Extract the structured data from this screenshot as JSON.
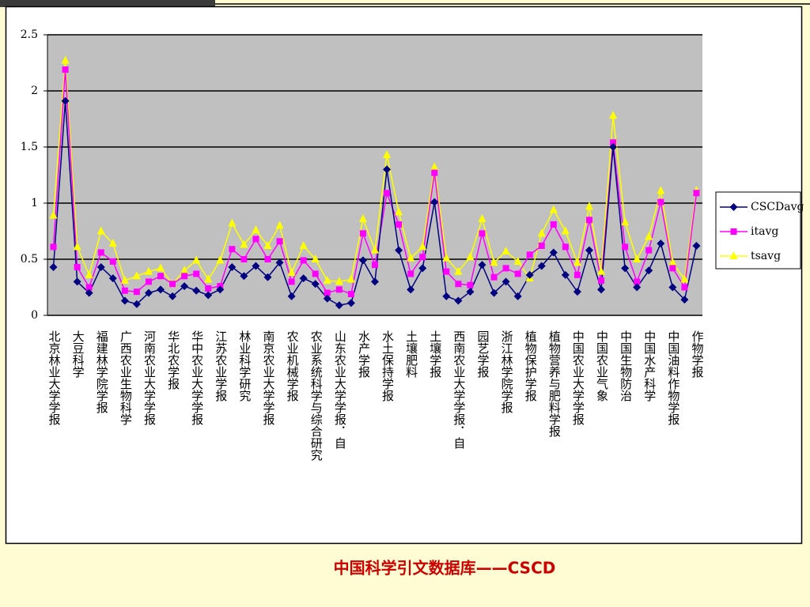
{
  "chart_data": {
    "type": "line",
    "categories": [
      "北京林业大学学报",
      null,
      "大豆科学",
      null,
      "福建林学院学报",
      null,
      "广西农业生物科学",
      null,
      "河南农业大学学报",
      null,
      "华北农学报",
      null,
      "华中农业大学学报",
      null,
      "江苏农业学报",
      null,
      "林业科学研究",
      null,
      "南京农业大学学报",
      null,
      "农业机械学报",
      null,
      "农业系统科学与综合研究",
      null,
      "山东农业大学学报．自",
      null,
      "水产学报",
      null,
      "水土保持学报",
      null,
      "土壤肥料",
      null,
      "土壤学报",
      null,
      "西南农业大学学报．自",
      null,
      "园艺学报",
      null,
      "浙江林学院学报",
      null,
      "植物保护学报",
      null,
      "植物营养与肥料学报",
      null,
      "中国农业大学学报",
      null,
      "中国农业气象",
      null,
      "中国生物防治",
      null,
      "中国水产科学",
      null,
      "中国油料作物学报",
      null,
      "作物学报"
    ],
    "series": [
      {
        "name": "CSCDavg",
        "color": "#000080",
        "values": [
          0.43,
          1.91,
          0.3,
          0.2,
          0.43,
          0.33,
          0.13,
          0.1,
          0.2,
          0.23,
          0.17,
          0.26,
          0.22,
          0.18,
          0.23,
          0.43,
          0.35,
          0.44,
          0.34,
          0.47,
          0.17,
          0.33,
          0.28,
          0.15,
          0.09,
          0.11,
          0.49,
          0.3,
          1.3,
          0.58,
          0.23,
          0.42,
          1.01,
          0.17,
          0.13,
          0.21,
          0.45,
          0.2,
          0.3,
          0.17,
          0.36,
          0.44,
          0.56,
          0.36,
          0.21,
          0.58,
          0.23,
          1.5,
          0.42,
          0.25,
          0.4,
          0.64,
          0.25,
          0.14,
          0.62
        ]
      },
      {
        "name": "itavg",
        "color": "#ff00ff",
        "values": [
          0.61,
          2.19,
          0.43,
          0.25,
          0.56,
          0.48,
          0.22,
          0.21,
          0.3,
          0.35,
          0.28,
          0.35,
          0.37,
          0.24,
          0.26,
          0.59,
          0.5,
          0.68,
          0.5,
          0.66,
          0.3,
          0.49,
          0.37,
          0.2,
          0.23,
          0.19,
          0.73,
          0.45,
          1.09,
          0.81,
          0.37,
          0.52,
          1.27,
          0.39,
          0.28,
          0.27,
          0.73,
          0.34,
          0.42,
          0.37,
          0.54,
          0.62,
          0.81,
          0.61,
          0.36,
          0.85,
          0.31,
          1.54,
          0.61,
          0.3,
          0.58,
          1.01,
          0.42,
          0.25,
          1.09
        ]
      },
      {
        "name": "tsavg",
        "color": "#ffff00",
        "values": [
          0.89,
          2.27,
          0.61,
          0.36,
          0.75,
          0.64,
          0.31,
          0.35,
          0.39,
          0.42,
          0.28,
          0.4,
          0.49,
          0.32,
          0.49,
          0.82,
          0.63,
          0.76,
          0.62,
          0.8,
          0.38,
          0.62,
          0.5,
          0.31,
          0.3,
          0.32,
          0.86,
          0.58,
          1.43,
          0.92,
          0.51,
          0.61,
          1.32,
          0.51,
          0.39,
          0.52,
          0.86,
          0.47,
          0.57,
          0.48,
          0.33,
          0.73,
          0.94,
          0.75,
          0.47,
          0.97,
          0.39,
          1.78,
          0.83,
          0.5,
          0.7,
          1.11,
          0.47,
          0.32,
          1.11
        ]
      }
    ],
    "ylim": [
      0,
      2.5
    ],
    "yticks": [
      0,
      0.5,
      1,
      1.5,
      2,
      2.5
    ],
    "grid": true,
    "legend": "right",
    "footer": "中国科学引文数据库——CSCD"
  }
}
